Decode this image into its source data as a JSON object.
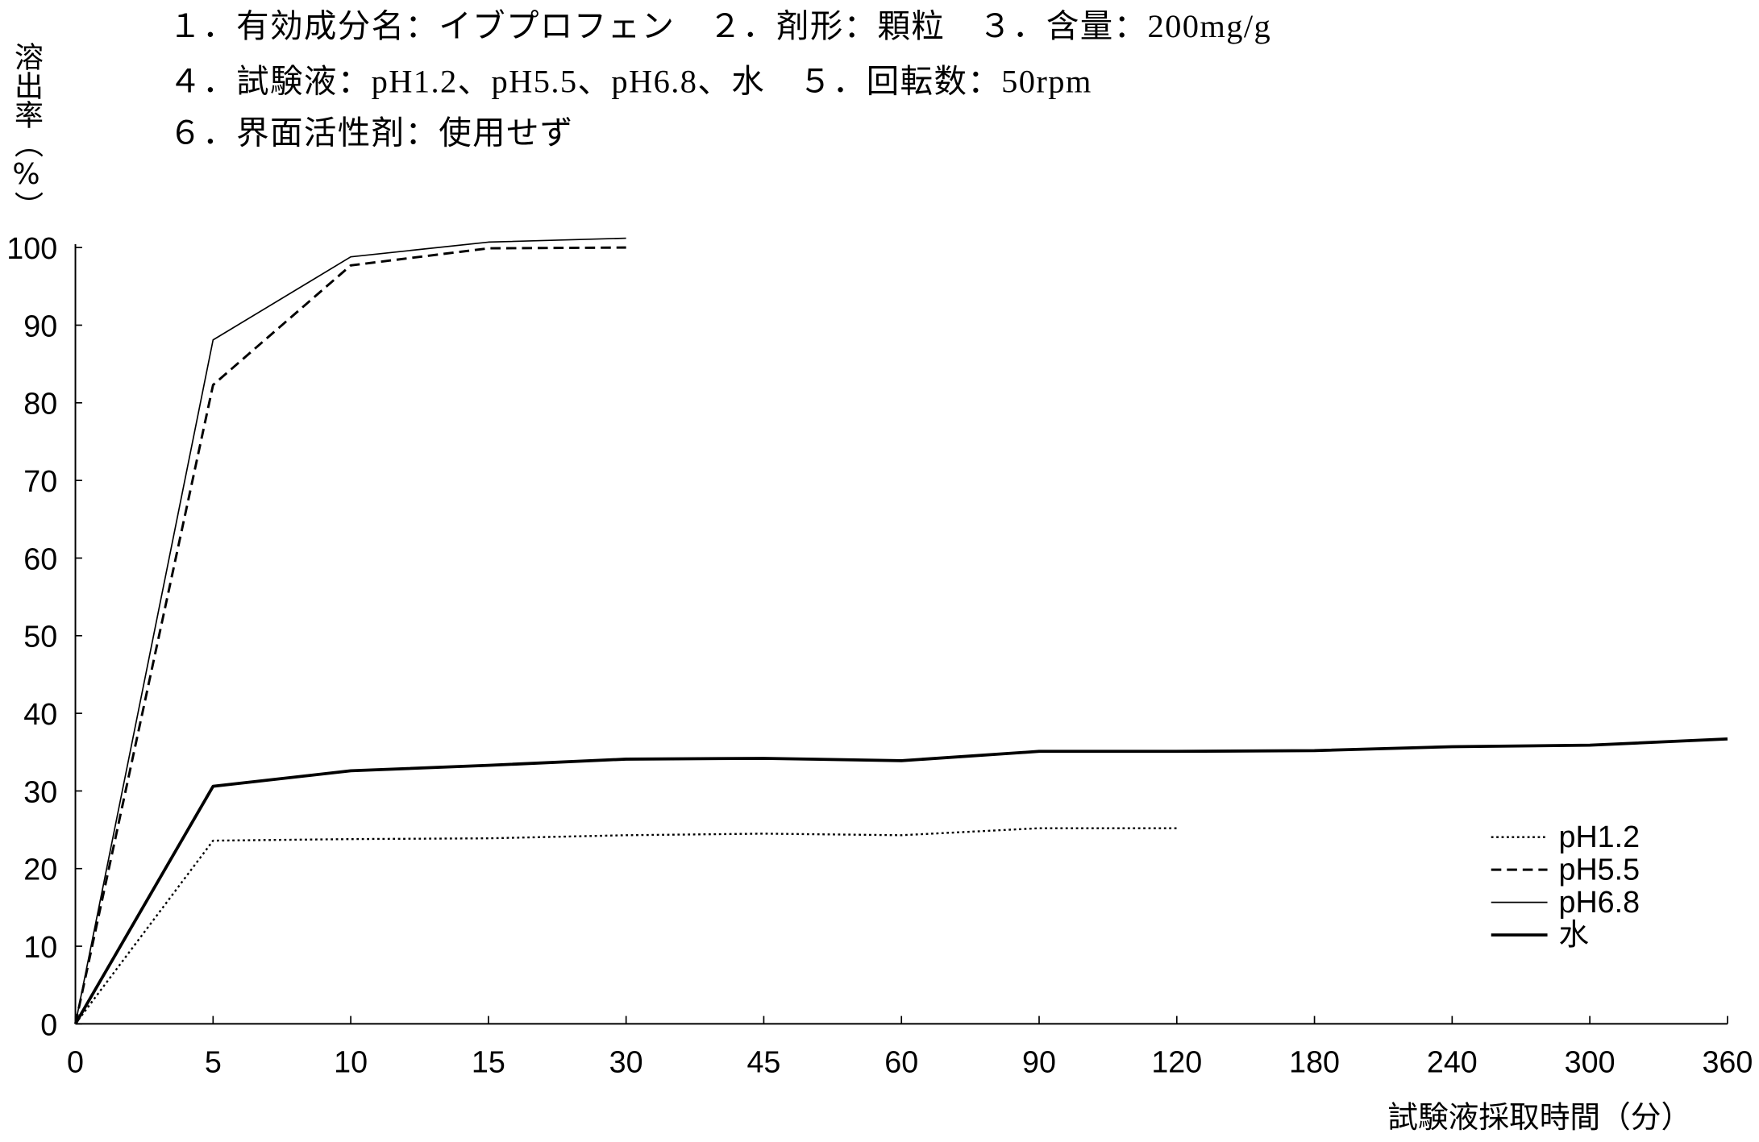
{
  "chart_data": {
    "type": "line",
    "annotations": [
      "１．有効成分名：イブプロフェン　２．剤形：顆粒　３．含量：200mg/g",
      "４．試験液：pH1.2、pH5.5、pH6.8、水　５．回転数：50rpm",
      "６．界面活性剤：使用せず"
    ],
    "xlabel": "試験液採取時間（分）",
    "ylabel": "溶出率（%）",
    "x": [
      0,
      5,
      10,
      15,
      30,
      45,
      60,
      90,
      120,
      180,
      240,
      300,
      360
    ],
    "x_scale": "categorical",
    "yticks": [
      0,
      10,
      20,
      30,
      40,
      50,
      60,
      70,
      80,
      90,
      100
    ],
    "ylim": [
      0,
      100
    ],
    "grid": false,
    "legend": "lower-right",
    "colors": {
      "ink": "#000000",
      "background": "#ffffff"
    },
    "series": [
      {
        "name": "pH1.2",
        "line_style": "dotted",
        "values": [
          0,
          23.6,
          23.8,
          23.9,
          24.3,
          24.5,
          24.3,
          25.2,
          25.2,
          null,
          null,
          null,
          null
        ]
      },
      {
        "name": "pH5.5",
        "line_style": "dashed",
        "values": [
          0,
          82.3,
          97.7,
          99.9,
          100.0,
          null,
          null,
          null,
          null,
          null,
          null,
          null,
          null
        ]
      },
      {
        "name": "pH6.8",
        "line_style": "thin-solid",
        "values": [
          0,
          88.1,
          98.8,
          100.7,
          101.2,
          null,
          null,
          null,
          null,
          null,
          null,
          null,
          null
        ]
      },
      {
        "name": "水",
        "line_style": "thick-solid",
        "values": [
          0,
          30.6,
          32.6,
          33.3,
          34.1,
          34.2,
          33.9,
          35.1,
          35.1,
          35.2,
          35.7,
          35.9,
          36.7
        ]
      }
    ]
  }
}
